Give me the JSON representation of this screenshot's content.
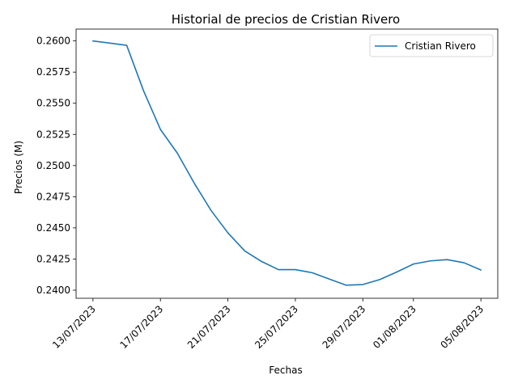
{
  "chart_data": {
    "type": "line",
    "title": "Historial de precios de Cristian Rivero",
    "xlabel": "Fechas",
    "ylabel": "Precios (M)",
    "x": [
      "13/07/2023",
      "15/07/2023",
      "16/07/2023",
      "17/07/2023",
      "18/07/2023",
      "19/07/2023",
      "20/07/2023",
      "21/07/2023",
      "22/07/2023",
      "23/07/2023",
      "24/07/2023",
      "25/07/2023",
      "26/07/2023",
      "27/07/2023",
      "28/07/2023",
      "29/07/2023",
      "30/07/2023",
      "31/07/2023",
      "01/08/2023",
      "02/08/2023",
      "03/08/2023",
      "04/08/2023",
      "05/08/2023"
    ],
    "series": [
      {
        "name": "Cristian Rivero",
        "color": "#1f77b4",
        "values": [
          0.26,
          0.25965,
          0.256,
          0.2529,
          0.251,
          0.2486,
          0.2464,
          0.2446,
          0.24315,
          0.2423,
          0.24165,
          0.24165,
          0.2414,
          0.2409,
          0.2404,
          0.24045,
          0.24085,
          0.24145,
          0.2421,
          0.24235,
          0.24245,
          0.2422,
          0.24162
        ]
      }
    ],
    "xticks": [
      "13/07/2023",
      "17/07/2023",
      "21/07/2023",
      "25/07/2023",
      "29/07/2023",
      "01/08/2023",
      "05/08/2023"
    ],
    "yticks": [
      0.24,
      0.2425,
      0.245,
      0.2475,
      0.25,
      0.2525,
      0.255,
      0.2575,
      0.26
    ],
    "ytick_labels": [
      "0.2400",
      "0.2425",
      "0.2450",
      "0.2475",
      "0.2500",
      "0.2525",
      "0.2550",
      "0.2575",
      "0.2600"
    ],
    "xlim": [
      "12/07/2023",
      "06/08/2023"
    ],
    "ylim": [
      0.23935,
      0.26095
    ],
    "grid": false,
    "legend_position": "upper right"
  }
}
